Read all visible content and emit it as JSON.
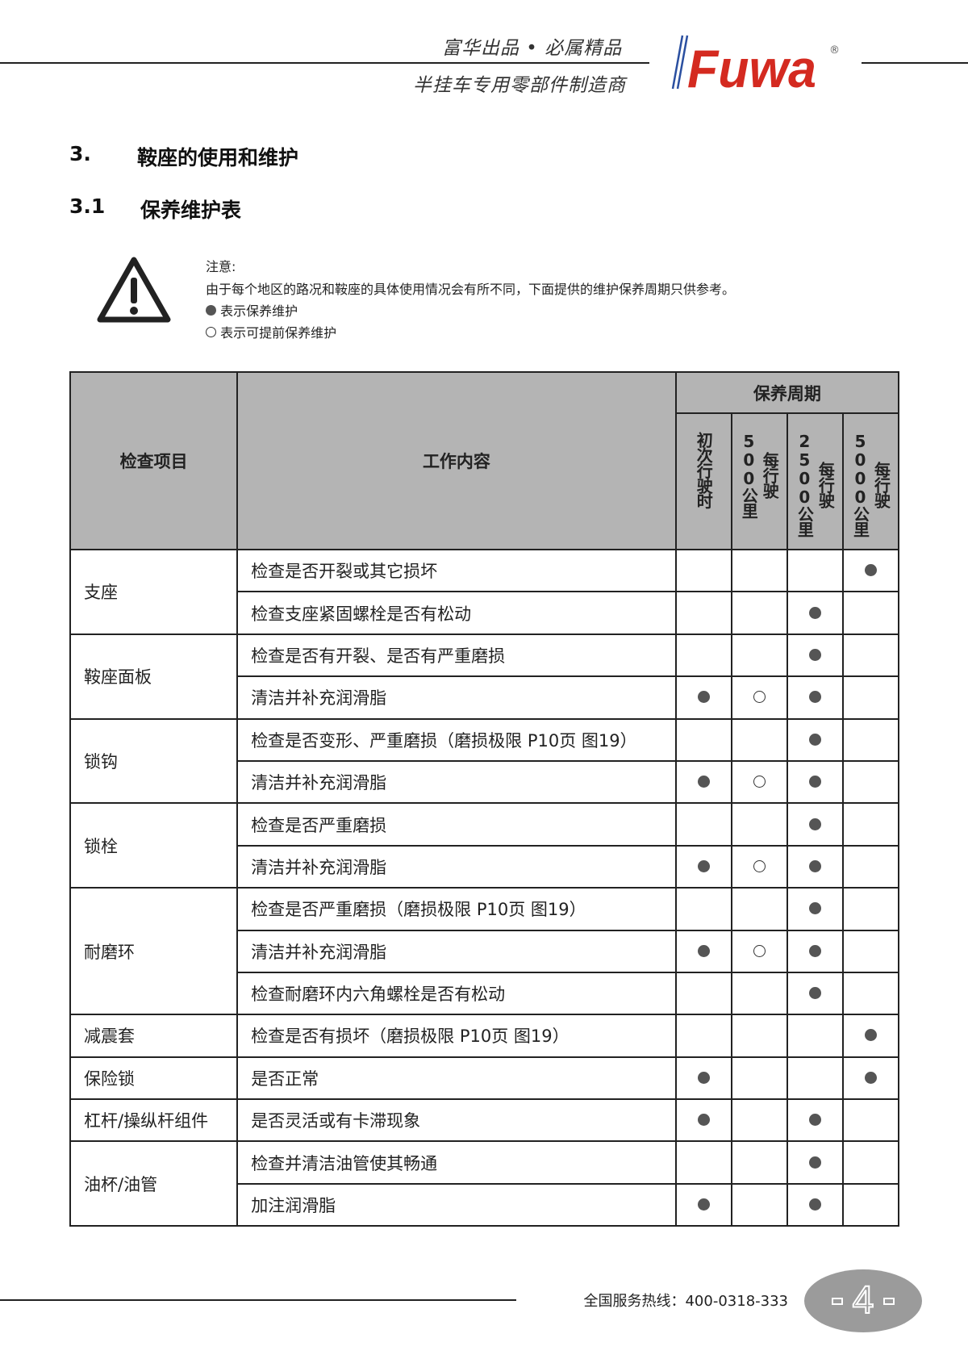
{
  "header": {
    "slogan_top": "富华出品 • 必属精品",
    "slogan_bottom": "半挂车专用零部件制造商",
    "logo_text": "Fuwa",
    "logo_mark": "®",
    "brand_red": "#d42a20",
    "brand_blue": "#2a4fa0"
  },
  "section": {
    "number": "3.",
    "title": "鞍座的使用和维护"
  },
  "subsection": {
    "number": "3.1",
    "title": "保养维护表"
  },
  "notice": {
    "icon": "warning-triangle-icon",
    "label": "注意:",
    "text": "由于每个地区的路况和鞍座的具体使用情况会有所不同，下面提供的维护保养周期只供参考。",
    "legend_filled": "表示保养维护",
    "legend_hollow": "表示可提前保养维护"
  },
  "table": {
    "headers": {
      "item": "检查项目",
      "content": "工作内容",
      "period": "保养周期",
      "periods": [
        [
          "初次行驶时"
        ],
        [
          "每行驶",
          "500公里"
        ],
        [
          "每行驶",
          "2500公里"
        ],
        [
          "每行驶",
          "5000公里"
        ]
      ]
    },
    "groups": [
      {
        "item": "支座",
        "rows": [
          {
            "content": "检查是否开裂或其它损坏",
            "marks": [
              "",
              "",
              "",
              "filled"
            ]
          },
          {
            "content": "检查支座紧固螺栓是否有松动",
            "marks": [
              "",
              "",
              "filled",
              ""
            ]
          }
        ]
      },
      {
        "item": "鞍座面板",
        "rows": [
          {
            "content": "检查是否有开裂、是否有严重磨损",
            "marks": [
              "",
              "",
              "filled",
              ""
            ]
          },
          {
            "content": "清洁并补充润滑脂",
            "marks": [
              "filled",
              "hollow",
              "filled",
              ""
            ]
          }
        ]
      },
      {
        "item": "锁钩",
        "rows": [
          {
            "content": "检查是否变形、严重磨损（磨损极限 P10页 图19）",
            "marks": [
              "",
              "",
              "filled",
              ""
            ]
          },
          {
            "content": "清洁并补充润滑脂",
            "marks": [
              "filled",
              "hollow",
              "filled",
              ""
            ]
          }
        ]
      },
      {
        "item": "锁栓",
        "rows": [
          {
            "content": "检查是否严重磨损",
            "marks": [
              "",
              "",
              "filled",
              ""
            ]
          },
          {
            "content": "清洁并补充润滑脂",
            "marks": [
              "filled",
              "hollow",
              "filled",
              ""
            ]
          }
        ]
      },
      {
        "item": "耐磨环",
        "rows": [
          {
            "content": "检查是否严重磨损（磨损极限 P10页 图19）",
            "marks": [
              "",
              "",
              "filled",
              ""
            ]
          },
          {
            "content": "清洁并补充润滑脂",
            "marks": [
              "filled",
              "hollow",
              "filled",
              ""
            ]
          },
          {
            "content": "检查耐磨环内六角螺栓是否有松动",
            "marks": [
              "",
              "",
              "filled",
              ""
            ]
          }
        ]
      },
      {
        "item": "减震套",
        "rows": [
          {
            "content": "检查是否有损坏（磨损极限 P10页 图19）",
            "marks": [
              "",
              "",
              "",
              "filled"
            ]
          }
        ]
      },
      {
        "item": "保险锁",
        "rows": [
          {
            "content": "是否正常",
            "marks": [
              "filled",
              "",
              "",
              "filled"
            ]
          }
        ]
      },
      {
        "item": "杠杆/操纵杆组件",
        "rows": [
          {
            "content": "是否灵活或有卡滞现象",
            "marks": [
              "filled",
              "",
              "filled",
              ""
            ]
          }
        ]
      },
      {
        "item": "油杯/油管",
        "rows": [
          {
            "content": "检查并清洁油管使其畅通",
            "marks": [
              "",
              "",
              "filled",
              ""
            ]
          },
          {
            "content": "加注润滑脂",
            "marks": [
              "filled",
              "",
              "filled",
              ""
            ]
          }
        ]
      }
    ]
  },
  "footer": {
    "hotline": "全国服务热线：400-0318-333",
    "page": "4"
  }
}
